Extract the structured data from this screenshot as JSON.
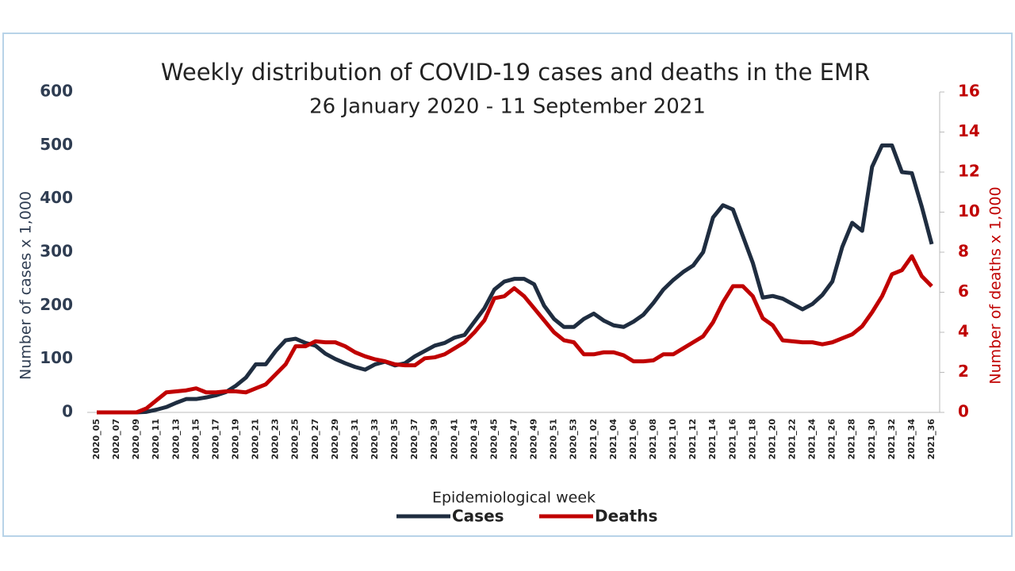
{
  "chart_data": {
    "type": "line",
    "title": "Weekly distribution of COVID-19 cases and deaths in the EMR",
    "subtitle": "26 January 2020 - 11 September 2021",
    "x_label": "Epidemiological week",
    "y_label": "Number of cases x 1,000",
    "y2_label": "Number of deaths x 1,000",
    "categories": [
      "2020_05",
      null,
      "2020_07",
      null,
      "2020_09",
      null,
      "2020_11",
      null,
      "2020_13",
      null,
      "2020_15",
      null,
      "2020_17",
      null,
      "2020_19",
      null,
      "2020_21",
      null,
      "2020_23",
      null,
      "2020_25",
      null,
      "2020_27",
      null,
      "2020_29",
      null,
      "2020_31",
      null,
      "2020_33",
      null,
      "2020_35",
      null,
      "2020_37",
      null,
      "2020_39",
      null,
      "2020_41",
      null,
      "2020_43",
      null,
      "2020_45",
      null,
      "2020_47",
      null,
      "2020_49",
      null,
      "2020_51",
      null,
      "2020_53",
      null,
      "2021_02",
      null,
      "2021_04",
      null,
      "2021_06",
      null,
      "2021_08",
      null,
      "2021_10",
      null,
      "2021_12",
      null,
      "2021_14",
      null,
      "2021_16",
      null,
      "2021_18",
      null,
      "2021_20",
      null,
      "2021_22",
      null,
      "2021_24",
      null,
      "2021_26",
      null,
      "2021_28",
      null,
      "2021_30",
      null,
      "2021_32",
      null,
      "2021_34",
      null,
      "2021_36"
    ],
    "series": [
      {
        "name": "Cases",
        "color": "#1f2d40",
        "values": [
          0,
          0,
          0,
          0,
          0,
          1,
          5,
          10,
          18,
          25,
          25,
          28,
          32,
          38,
          50,
          65,
          90,
          90,
          115,
          135,
          138,
          130,
          125,
          110,
          100,
          92,
          85,
          80,
          90,
          95,
          88,
          92,
          105,
          115,
          125,
          130,
          140,
          145,
          170,
          195,
          230,
          245,
          250,
          250,
          240,
          200,
          175,
          160,
          160,
          175,
          185,
          172,
          163,
          160,
          170,
          183,
          205,
          230,
          248,
          263,
          275,
          300,
          365,
          388,
          380,
          330,
          280,
          215,
          218,
          213,
          203,
          193,
          203,
          220,
          245,
          310,
          355,
          340,
          460,
          500,
          500,
          450,
          448,
          385,
          315
        ]
      },
      {
        "name": "Deaths",
        "color": "#c00000",
        "axis": "y2",
        "values": [
          0,
          0,
          0,
          0,
          0,
          0.2,
          0.6,
          1.0,
          1.05,
          1.1,
          1.2,
          1.0,
          1.0,
          1.05,
          1.05,
          1.0,
          1.2,
          1.4,
          1.9,
          2.4,
          3.3,
          3.3,
          3.55,
          3.5,
          3.5,
          3.3,
          3.0,
          2.8,
          2.65,
          2.55,
          2.4,
          2.35,
          2.35,
          2.7,
          2.75,
          2.9,
          3.2,
          3.5,
          4.0,
          4.6,
          5.7,
          5.8,
          6.2,
          5.8,
          5.2,
          4.6,
          4.0,
          3.6,
          3.5,
          2.9,
          2.9,
          3.0,
          3.0,
          2.85,
          2.55,
          2.55,
          2.6,
          2.9,
          2.9,
          3.2,
          3.5,
          3.8,
          4.5,
          5.5,
          6.3,
          6.3,
          5.8,
          4.7,
          4.35,
          3.6,
          3.55,
          3.5,
          3.5,
          3.4,
          3.5,
          3.7,
          3.9,
          4.3,
          5.0,
          5.8,
          6.9,
          7.1,
          7.8,
          6.8,
          6.3
        ]
      }
    ],
    "ylim": [
      0,
      600
    ],
    "yticks": [
      0,
      100,
      200,
      300,
      400,
      500,
      600
    ],
    "y2lim": [
      0,
      16
    ],
    "y2ticks": [
      0,
      2,
      4,
      6,
      8,
      10,
      12,
      14,
      16
    ],
    "grid": false
  }
}
